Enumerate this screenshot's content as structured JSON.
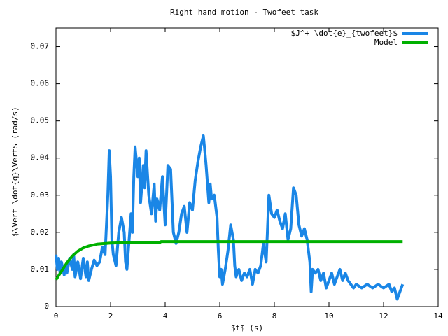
{
  "chart_data": {
    "type": "line",
    "title": "Right hand motion - Twofeet task",
    "x_label": "$t$ (s)",
    "y_label": "$\\Vert \\dot{q}\\Vert$ (rad/s)",
    "xlim": [
      0,
      14
    ],
    "xticks": [
      0,
      2,
      4,
      6,
      8,
      10,
      12,
      14
    ],
    "ylim": [
      0,
      0.075
    ],
    "yticks": [
      0,
      0.01,
      0.02,
      0.03,
      0.04,
      0.05,
      0.06,
      0.07
    ],
    "legend": "top-right",
    "series": [
      {
        "name": "$J^+ \\dot{e}_{twofeet}$",
        "color": "#1a86e6",
        "x": [
          0,
          0.05,
          0.1,
          0.15,
          0.2,
          0.3,
          0.35,
          0.4,
          0.5,
          0.6,
          0.65,
          0.7,
          0.8,
          0.9,
          1.0,
          1.1,
          1.15,
          1.2,
          1.3,
          1.4,
          1.5,
          1.6,
          1.7,
          1.8,
          1.9,
          1.95,
          2.0,
          2.05,
          2.1,
          2.2,
          2.3,
          2.4,
          2.5,
          2.55,
          2.6,
          2.7,
          2.75,
          2.8,
          2.85,
          2.9,
          3.0,
          3.05,
          3.1,
          3.2,
          3.25,
          3.3,
          3.4,
          3.5,
          3.6,
          3.65,
          3.7,
          3.8,
          3.9,
          4.0,
          4.1,
          4.2,
          4.3,
          4.4,
          4.5,
          4.6,
          4.7,
          4.8,
          4.9,
          5.0,
          5.1,
          5.2,
          5.3,
          5.4,
          5.45,
          5.5,
          5.6,
          5.65,
          5.7,
          5.8,
          5.9,
          5.95,
          6.0,
          6.05,
          6.1,
          6.2,
          6.3,
          6.4,
          6.5,
          6.55,
          6.6,
          6.7,
          6.8,
          6.9,
          7.0,
          7.1,
          7.2,
          7.3,
          7.4,
          7.5,
          7.6,
          7.7,
          7.8,
          7.9,
          8.0,
          8.1,
          8.2,
          8.3,
          8.4,
          8.5,
          8.6,
          8.7,
          8.8,
          8.9,
          9.0,
          9.1,
          9.2,
          9.3,
          9.35,
          9.4,
          9.5,
          9.6,
          9.7,
          9.8,
          9.9,
          10.0,
          10.1,
          10.2,
          10.3,
          10.4,
          10.5,
          10.6,
          10.7,
          10.8,
          10.9,
          11.0,
          11.2,
          11.4,
          11.6,
          11.8,
          12.0,
          12.2,
          12.3,
          12.4,
          12.5,
          12.6,
          12.7
        ],
        "values": [
          0.014,
          0.01,
          0.013,
          0.009,
          0.012,
          0.0085,
          0.011,
          0.009,
          0.013,
          0.01,
          0.014,
          0.008,
          0.012,
          0.0075,
          0.013,
          0.008,
          0.012,
          0.007,
          0.01,
          0.0125,
          0.011,
          0.012,
          0.016,
          0.014,
          0.03,
          0.042,
          0.035,
          0.018,
          0.014,
          0.011,
          0.02,
          0.024,
          0.02,
          0.012,
          0.01,
          0.02,
          0.025,
          0.02,
          0.035,
          0.043,
          0.035,
          0.04,
          0.028,
          0.038,
          0.032,
          0.042,
          0.03,
          0.025,
          0.033,
          0.023,
          0.029,
          0.026,
          0.035,
          0.022,
          0.038,
          0.037,
          0.02,
          0.017,
          0.02,
          0.025,
          0.027,
          0.02,
          0.028,
          0.026,
          0.034,
          0.039,
          0.043,
          0.046,
          0.042,
          0.038,
          0.028,
          0.033,
          0.029,
          0.03,
          0.024,
          0.015,
          0.008,
          0.01,
          0.006,
          0.01,
          0.015,
          0.022,
          0.018,
          0.011,
          0.008,
          0.01,
          0.007,
          0.009,
          0.008,
          0.01,
          0.006,
          0.01,
          0.009,
          0.011,
          0.017,
          0.012,
          0.03,
          0.025,
          0.024,
          0.026,
          0.023,
          0.021,
          0.025,
          0.018,
          0.021,
          0.032,
          0.03,
          0.022,
          0.019,
          0.021,
          0.018,
          0.012,
          0.004,
          0.01,
          0.009,
          0.01,
          0.007,
          0.009,
          0.005,
          0.007,
          0.009,
          0.006,
          0.008,
          0.01,
          0.007,
          0.009,
          0.007,
          0.006,
          0.005,
          0.006,
          0.005,
          0.006,
          0.005,
          0.006,
          0.005,
          0.006,
          0.004,
          0.005,
          0.002,
          0.004,
          0.006
        ]
      },
      {
        "name": "Model",
        "color": "#00b000",
        "x": [
          0,
          0.2,
          0.4,
          0.6,
          0.8,
          1.0,
          1.2,
          1.5,
          2.0,
          2.5,
          3.8,
          3.85,
          12.7
        ],
        "values": [
          0.0072,
          0.0095,
          0.0118,
          0.0136,
          0.0149,
          0.0158,
          0.0163,
          0.0168,
          0.0171,
          0.0172,
          0.0172,
          0.0175,
          0.0175
        ]
      }
    ]
  }
}
